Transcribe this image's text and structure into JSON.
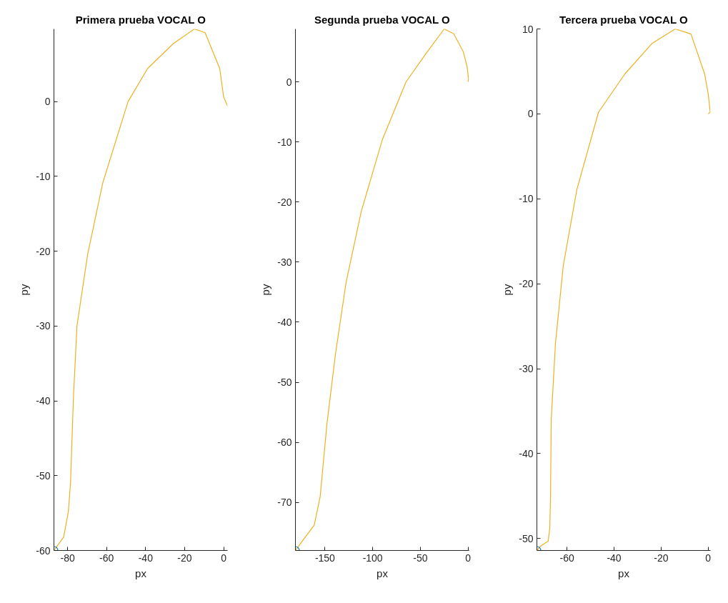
{
  "chart_data": [
    {
      "type": "line",
      "title": "Primera prueba VOCAL O",
      "xlabel": "px",
      "ylabel": "py",
      "xlim": [
        -87,
        2
      ],
      "ylim": [
        -60,
        9.7
      ],
      "xticks": [
        -80,
        -60,
        -40,
        -20,
        0
      ],
      "yticks": [
        -60,
        -50,
        -40,
        -30,
        -20,
        -10,
        0
      ],
      "grid": false,
      "series": [
        {
          "color": "#edb120",
          "x": [
            -87,
            -82,
            -79.6,
            -78.5,
            -77,
            -75.2,
            -69.7,
            -62,
            -49,
            -39,
            -26,
            -15,
            -9.5,
            -2,
            0,
            2
          ],
          "values": [
            -60,
            -58.2,
            -54.8,
            -51,
            -39.5,
            -30,
            -20.4,
            -10.9,
            0,
            4.4,
            7.7,
            9.7,
            9.2,
            4.4,
            0.6,
            -0.6
          ]
        },
        {
          "type": "scatter",
          "marker": "circle",
          "color": "#0072bd",
          "x": [
            -87
          ],
          "values": [
            -60
          ]
        }
      ]
    },
    {
      "type": "line",
      "title": "Segunda prueba VOCAL O",
      "xlabel": "px",
      "ylabel": "py",
      "xlim": [
        -181,
        1
      ],
      "ylim": [
        -78,
        8.8
      ],
      "xticks": [
        -150,
        -100,
        -50,
        0
      ],
      "yticks": [
        -70,
        -60,
        -50,
        -40,
        -30,
        -20,
        -10,
        0
      ],
      "grid": false,
      "series": [
        {
          "color": "#edb120",
          "x": [
            -181,
            -172.7,
            -161.3,
            -155,
            -148,
            -139,
            -128,
            -112,
            -90,
            -65,
            -45,
            -25,
            -15,
            -5,
            -1,
            0.5,
            0
          ],
          "values": [
            -78,
            -76.2,
            -73.8,
            -69,
            -57,
            -45.3,
            -33.5,
            -21.6,
            -9.7,
            0,
            4.5,
            8.8,
            8,
            5,
            2.5,
            0.5,
            0
          ]
        },
        {
          "type": "scatter",
          "marker": "circle",
          "color": "#0072bd",
          "x": [
            -181
          ],
          "values": [
            -78
          ]
        }
      ]
    },
    {
      "type": "line",
      "title": "Tercera prueba VOCAL O",
      "xlabel": "px",
      "ylabel": "py",
      "xlim": [
        -72.8,
        1
      ],
      "ylim": [
        -51.4,
        10
      ],
      "xticks": [
        -60,
        -40,
        -20,
        0
      ],
      "yticks": [
        -50,
        -40,
        -30,
        -20,
        -10,
        0,
        10
      ],
      "grid": false,
      "series": [
        {
          "color": "#edb120",
          "x": [
            -72.8,
            -71.3,
            -68,
            -67.3,
            -67,
            -66.7,
            -64.9,
            -61.6,
            -55.8,
            -46.6,
            -35.4,
            -23.8,
            -14,
            -7.3,
            -1.5,
            0,
            0.9,
            0
          ],
          "values": [
            -51.4,
            -50.9,
            -50.3,
            -48.7,
            -45,
            -36,
            -27,
            -17.9,
            -8.9,
            0.2,
            4.7,
            8.3,
            10,
            9.4,
            4.7,
            2.4,
            0.2,
            0
          ]
        },
        {
          "type": "scatter",
          "marker": "circle",
          "color": "#0072bd",
          "x": [
            -72.8
          ],
          "values": [
            -51.4
          ]
        }
      ]
    }
  ]
}
